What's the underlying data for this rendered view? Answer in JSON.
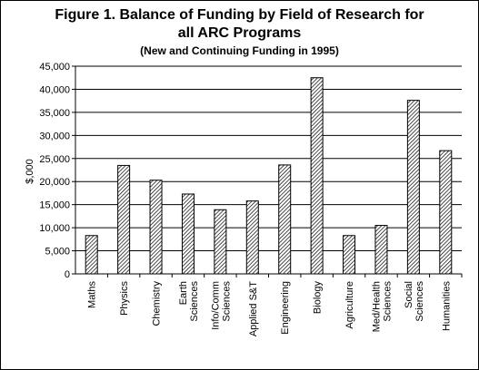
{
  "chart_data": {
    "type": "bar",
    "title_lines": [
      "Figure 1. Balance of Funding by Field of Research for",
      "all ARC Programs"
    ],
    "subtitle": "(New and Continuing Funding in 1995)",
    "xlabel": "",
    "ylabel": "$,000",
    "ylim": [
      0,
      45000
    ],
    "y_ticks": [
      "0",
      "5,000",
      "10,000",
      "15,000",
      "20,000",
      "25,000",
      "30,000",
      "35,000",
      "40,000",
      "45,000"
    ],
    "grid": true,
    "categories": [
      [
        "Maths"
      ],
      [
        "Physics"
      ],
      [
        "Chemistry"
      ],
      [
        "Earth",
        "Sciences"
      ],
      [
        "Info/Comm",
        "Sciences"
      ],
      [
        "Applied S&T"
      ],
      [
        "Engineering"
      ],
      [
        "Biology"
      ],
      [
        "Agriculture"
      ],
      [
        "Med/Health",
        "Sciences"
      ],
      [
        "Social",
        "Sciences"
      ],
      [
        "Humanities"
      ]
    ],
    "values": [
      8300,
      23500,
      20300,
      17300,
      13900,
      15800,
      23600,
      42500,
      8300,
      10500,
      37600,
      26700
    ],
    "bar_pattern": "diagonal-hatch",
    "legend": "none"
  }
}
